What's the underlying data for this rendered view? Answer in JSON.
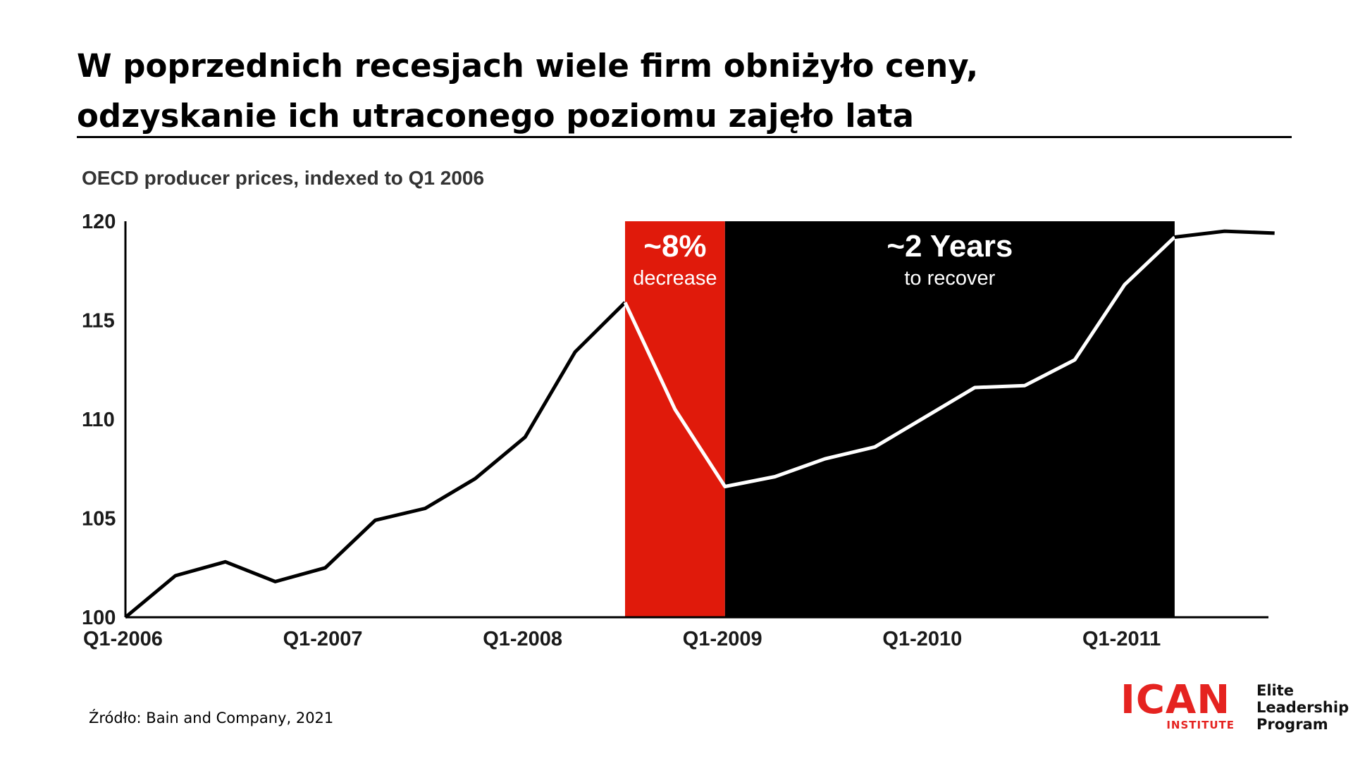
{
  "title_lines": [
    "W poprzednich recesjach wiele firm obniżyło ceny,",
    "odzyskanie ich utraconego poziomu zajęło lata"
  ],
  "source": "Źródło: Bain and Company, 2021",
  "logo": {
    "name": "ICAN",
    "sub": "INSTITUTE",
    "brand_color": "#e52320"
  },
  "program": [
    "Elite",
    "Leadership",
    "Program"
  ],
  "chart_data": {
    "type": "line",
    "title": "OECD producer prices, indexed to Q1 2006",
    "x": [
      "Q1-2006",
      "Q2-2006",
      "Q3-2006",
      "Q4-2006",
      "Q1-2007",
      "Q2-2007",
      "Q3-2007",
      "Q4-2007",
      "Q1-2008",
      "Q2-2008",
      "Q3-2008",
      "Q4-2008",
      "Q1-2009",
      "Q2-2009",
      "Q3-2009",
      "Q4-2009",
      "Q1-2010",
      "Q2-2010",
      "Q3-2010",
      "Q4-2010",
      "Q1-2011",
      "Q2-2011",
      "Q3-2011",
      "Q4-2011"
    ],
    "values": [
      100,
      102.1,
      102.8,
      101.8,
      102.5,
      104.9,
      105.5,
      107.0,
      109.1,
      113.4,
      115.9,
      110.5,
      106.6,
      107.1,
      108.0,
      108.6,
      110.1,
      111.6,
      111.7,
      113.0,
      116.8,
      119.2,
      119.5,
      119.4
    ],
    "x_tick_labels": [
      "Q1-2006",
      "Q1-2007",
      "Q1-2008",
      "Q1-2009",
      "Q1-2010",
      "Q1-2011"
    ],
    "y_ticks": [
      100,
      105,
      110,
      115,
      120
    ],
    "ylim": [
      100,
      120
    ],
    "xlabel": "",
    "ylabel": "",
    "grid": false,
    "line_color": "#000000",
    "highlight_line_color": "#ffffff",
    "regions": [
      {
        "from": "Q3-2008",
        "to": "Q1-2009",
        "color": "#e01a0b",
        "label_big": "~8%",
        "label_small": "decrease"
      },
      {
        "from": "Q1-2009",
        "to": "Q2-2011",
        "color": "#000000",
        "label_big": "~2 Years",
        "label_small": "to recover"
      }
    ]
  }
}
